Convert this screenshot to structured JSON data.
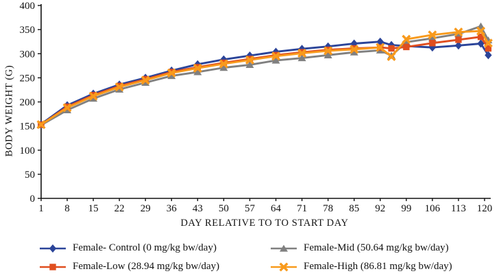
{
  "figure_title": "",
  "axes": {
    "ylabel": "BODY WEIGHT (G)",
    "xlabel": "DAY RELATIVE TO TO START DAY"
  },
  "colors": {
    "axis": "#111111",
    "control_blue": "#2B4499",
    "low_red": "#E04E1F",
    "mid_gray": "#808080",
    "high_orange": "#F89A1C"
  },
  "chart_data": {
    "type": "line",
    "title": "",
    "xlabel": "DAY RELATIVE TO TO START DAY",
    "ylabel": "BODY WEIGHT (G)",
    "grid": false,
    "legend_position": "bottom",
    "ylim": [
      0,
      400
    ],
    "yticks": [
      0,
      50,
      100,
      150,
      200,
      250,
      300,
      350,
      400
    ],
    "xticks": [
      1,
      8,
      15,
      22,
      29,
      36,
      43,
      50,
      57,
      64,
      71,
      78,
      85,
      92,
      99,
      106,
      113,
      120
    ],
    "x": [
      1,
      8,
      15,
      22,
      29,
      36,
      43,
      50,
      57,
      64,
      71,
      78,
      85,
      92,
      95,
      99,
      106,
      113,
      119,
      121
    ],
    "series": [
      {
        "name": "Female- Control (0 mg/kg bw/day)",
        "marker": "diamond",
        "color": "#2B4499",
        "values": [
          154,
          193,
          217,
          236,
          250,
          265,
          278,
          288,
          296,
          304,
          310,
          315,
          321,
          325,
          318,
          316,
          313,
          317,
          321,
          297
        ]
      },
      {
        "name": "Female-Low (28.94 mg/kg bw/day)",
        "marker": "square",
        "color": "#E04E1F",
        "values": [
          153,
          190,
          214,
          233,
          247,
          262,
          272,
          281,
          289,
          297,
          303,
          308,
          311,
          313,
          311,
          314,
          322,
          329,
          335,
          311
        ]
      },
      {
        "name": "Female-Mid (50.64 mg/kg bw/day)",
        "marker": "triangle",
        "color": "#808080",
        "values": [
          152,
          183,
          207,
          226,
          240,
          254,
          262,
          271,
          277,
          286,
          291,
          297,
          303,
          307,
          296,
          324,
          332,
          341,
          357,
          328
        ]
      },
      {
        "name": "Female-High (86.81 mg/kg bw/day)",
        "marker": "x",
        "color": "#F89A1C",
        "values": [
          153,
          188,
          212,
          231,
          245,
          260,
          270,
          279,
          287,
          295,
          301,
          306,
          309,
          313,
          294,
          330,
          339,
          345,
          347,
          322
        ]
      }
    ]
  }
}
